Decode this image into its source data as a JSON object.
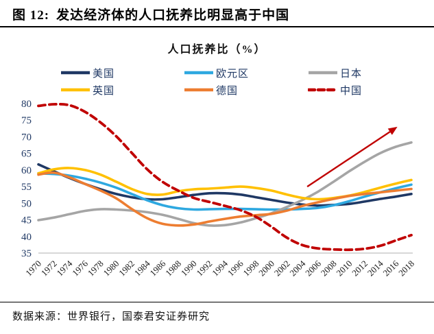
{
  "header": {
    "figure_label": "图 12:",
    "title": "发达经济体的人口抚养比明显高于中国"
  },
  "footer": {
    "source": "数据来源：世界银行，国泰君安证券研究"
  },
  "colors": {
    "accent_navy": "#1F3864",
    "axis_line": "#BFBFBF",
    "tick_label_x": "#1a1a1a",
    "annotation_red": "#C00000"
  },
  "chart_data": {
    "type": "line",
    "title": "人口抚养比（%）",
    "xlabel": "",
    "ylabel": "",
    "ylim": [
      35,
      80
    ],
    "y_ticks": [
      35,
      40,
      45,
      50,
      55,
      60,
      65,
      70,
      75,
      80
    ],
    "grid": false,
    "legend_position": "top",
    "x": [
      1970,
      1972,
      1974,
      1976,
      1978,
      1980,
      1982,
      1984,
      1986,
      1988,
      1990,
      1992,
      1994,
      1996,
      1998,
      2000,
      2002,
      2004,
      2006,
      2008,
      2010,
      2012,
      2014,
      2016,
      2018
    ],
    "x_tick_labels": [
      "1970",
      "1972",
      "1974",
      "1976",
      "1978",
      "1980",
      "1982",
      "1984",
      "1986",
      "1988",
      "1990",
      "1992",
      "1994",
      "1996",
      "1998",
      "2000",
      "2002",
      "2004",
      "2006",
      "2008",
      "2010",
      "2012",
      "2014",
      "2016",
      "2018"
    ],
    "series": [
      {
        "key": "us",
        "name": "美国",
        "color": "#1F3864",
        "style": "solid",
        "values": [
          61.7,
          59.6,
          57.6,
          55.8,
          54.2,
          52.8,
          51.8,
          51.2,
          51.2,
          51.8,
          52.5,
          53.0,
          53.0,
          52.6,
          51.8,
          51.0,
          50.2,
          49.6,
          49.3,
          49.5,
          49.8,
          50.5,
          51.3,
          52.0,
          52.8
        ]
      },
      {
        "key": "eurozone",
        "name": "欧元区",
        "color": "#2EA8E0",
        "style": "solid",
        "values": [
          59.0,
          58.8,
          58.3,
          57.4,
          56.2,
          54.7,
          52.8,
          50.9,
          49.4,
          48.5,
          48.1,
          48.2,
          48.3,
          48.3,
          48.2,
          48.1,
          48.1,
          48.3,
          48.6,
          49.4,
          50.6,
          52.0,
          53.3,
          54.5,
          55.6
        ]
      },
      {
        "key": "japan",
        "name": "日本",
        "color": "#A5A5A5",
        "style": "solid",
        "values": [
          44.9,
          45.7,
          46.7,
          47.7,
          48.2,
          48.1,
          47.8,
          47.3,
          46.5,
          45.3,
          44.0,
          43.3,
          43.4,
          44.2,
          45.5,
          47.0,
          48.9,
          51.0,
          53.5,
          56.5,
          59.6,
          62.5,
          65.1,
          67.0,
          68.3
        ]
      },
      {
        "key": "uk",
        "name": "英国",
        "color": "#FFC000",
        "style": "solid",
        "values": [
          59.0,
          60.2,
          60.6,
          60.0,
          58.6,
          56.5,
          54.3,
          52.8,
          52.6,
          53.6,
          54.2,
          54.4,
          54.7,
          55.0,
          54.6,
          53.8,
          52.6,
          51.6,
          51.2,
          51.6,
          52.3,
          53.4,
          54.7,
          55.9,
          57.0
        ]
      },
      {
        "key": "germany",
        "name": "德国",
        "color": "#ED7D31",
        "style": "solid",
        "values": [
          58.6,
          59.2,
          57.8,
          55.8,
          53.8,
          51.5,
          48.3,
          45.5,
          43.8,
          43.3,
          43.6,
          44.5,
          45.3,
          46.0,
          46.4,
          46.8,
          47.8,
          49.2,
          50.3,
          51.3,
          52.2,
          52.8,
          53.3,
          53.8,
          54.3
        ]
      },
      {
        "key": "china",
        "name": "中国",
        "color": "#C00000",
        "style": "dashed",
        "values": [
          79.3,
          79.8,
          79.5,
          77.5,
          74.3,
          70.2,
          65.2,
          60.2,
          56.4,
          53.8,
          51.6,
          50.4,
          49.2,
          47.9,
          45.9,
          42.9,
          39.6,
          37.4,
          36.4,
          36.1,
          36.0,
          36.3,
          37.2,
          38.8,
          40.4
        ]
      }
    ],
    "annotation_arrow": {
      "color": "#C00000",
      "from": {
        "year": 2004.6,
        "value": 55.0
      },
      "to": {
        "year": 2016.2,
        "value": 73.0
      }
    }
  }
}
